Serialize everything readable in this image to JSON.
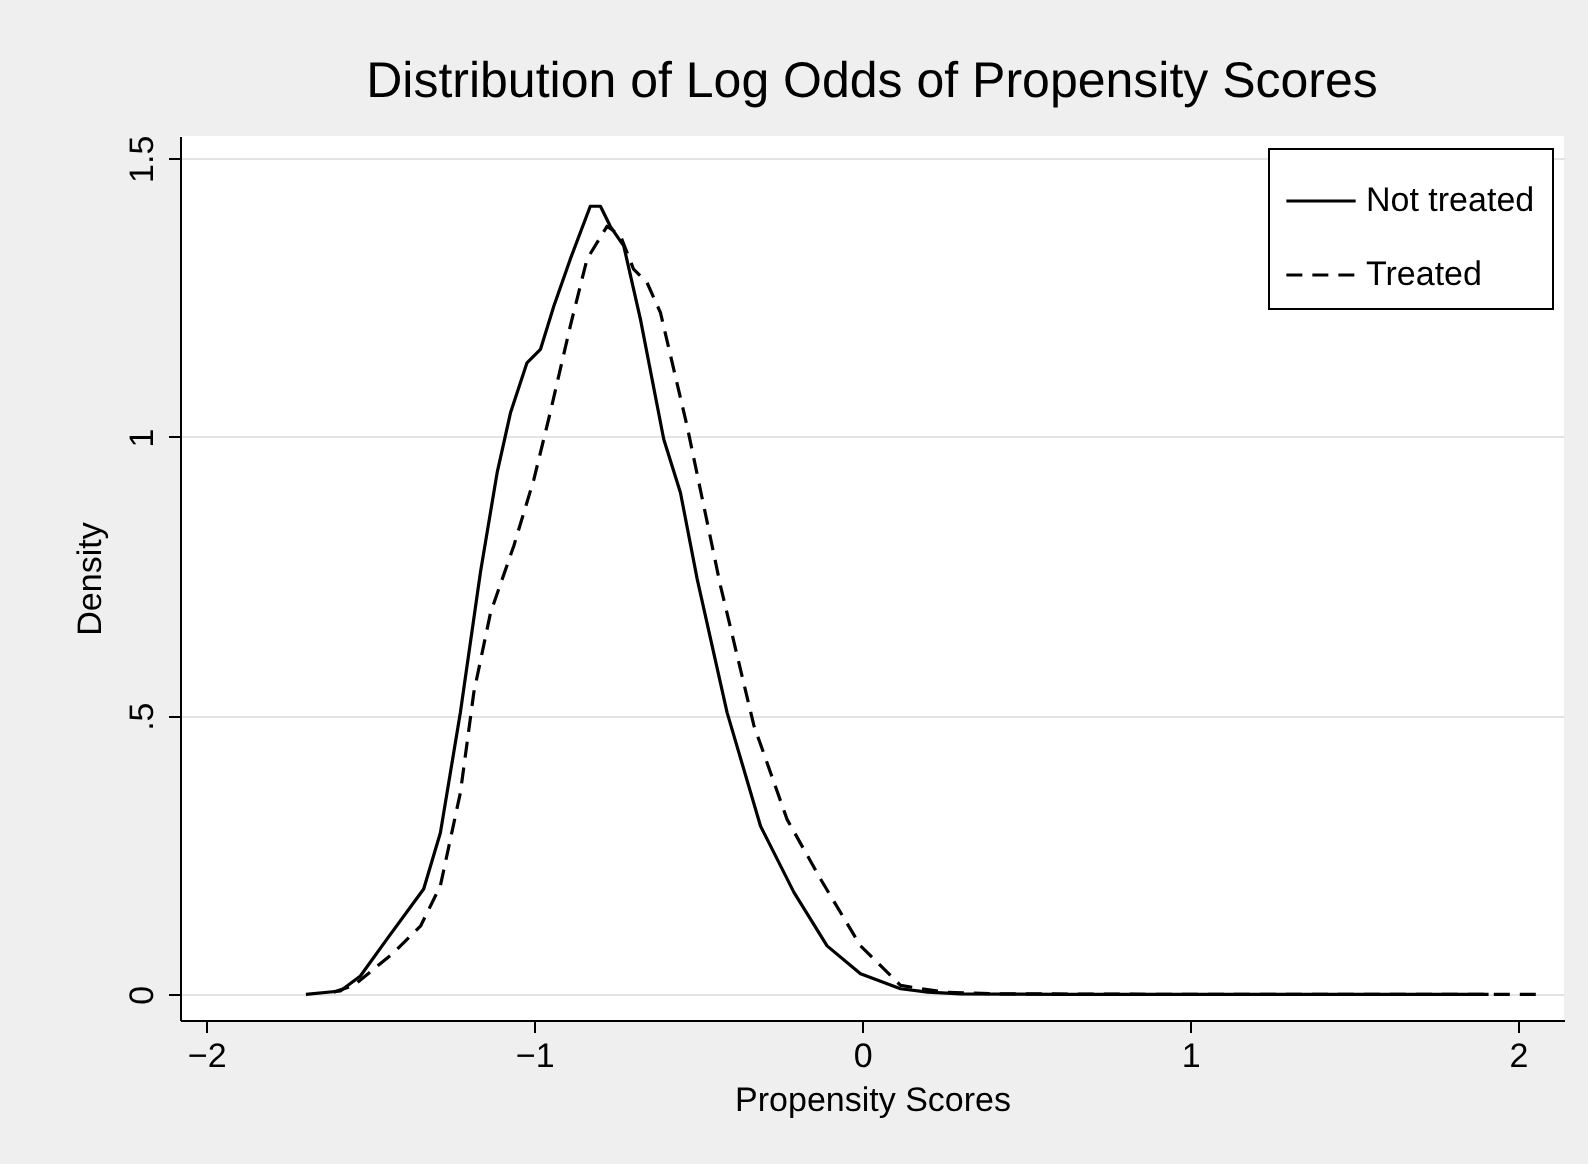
{
  "chart_data": {
    "type": "line",
    "title": "Distribution of Log Odds of Propensity Scores",
    "xlabel": "Propensity Scores",
    "ylabel": "Density",
    "xlim": [
      -2.08,
      2.14
    ],
    "ylim": [
      -0.046,
      1.54
    ],
    "xticks": [
      {
        "value": -2,
        "label": "−2"
      },
      {
        "value": -1,
        "label": "−1"
      },
      0,
      1,
      2
    ],
    "yticks": [
      0,
      {
        "value": 0.5,
        "label": ".5"
      },
      1,
      1.5
    ],
    "grid": "y",
    "legend": "top right",
    "marker": "none",
    "series": [
      {
        "name": "Not treated",
        "color": "#000000",
        "line_style": "solid",
        "x": [
          -1.696,
          -1.591,
          -1.53,
          -1.449,
          -1.337,
          -1.286,
          -1.225,
          -1.164,
          -1.113,
          -1.072,
          -1.022,
          -0.981,
          -0.94,
          -0.89,
          -0.829,
          -0.798,
          -0.768,
          -0.727,
          -0.676,
          -0.605,
          -0.554,
          -0.503,
          -0.412,
          -0.31,
          -0.208,
          -0.107,
          -0.005,
          0.117,
          0.2,
          0.3,
          0.6,
          1.91
        ],
        "values": [
          0,
          0.006,
          0.033,
          0.099,
          0.189,
          0.29,
          0.506,
          0.757,
          0.936,
          1.044,
          1.133,
          1.157,
          1.235,
          1.319,
          1.414,
          1.414,
          1.378,
          1.343,
          1.211,
          0.996,
          0.9,
          0.745,
          0.506,
          0.302,
          0.183,
          0.087,
          0.037,
          0.01,
          0.004,
          0.001,
          0,
          0
        ]
      },
      {
        "name": "Treated",
        "color": "#000000",
        "line_style": "dashed",
        "x": [
          -1.611,
          -1.55,
          -1.428,
          -1.346,
          -1.286,
          -1.225,
          -1.184,
          -1.133,
          -1.062,
          -1.001,
          -0.951,
          -0.89,
          -0.839,
          -0.778,
          -0.737,
          -0.697,
          -0.656,
          -0.615,
          -0.534,
          -0.432,
          -0.33,
          -0.229,
          -0.127,
          -0.005,
          0.117,
          0.25,
          0.4,
          1.0,
          2.07
        ],
        "values": [
          0.004,
          0.016,
          0.075,
          0.123,
          0.195,
          0.362,
          0.542,
          0.685,
          0.805,
          0.924,
          1.044,
          1.199,
          1.319,
          1.378,
          1.361,
          1.301,
          1.277,
          1.223,
          1.02,
          0.733,
          0.482,
          0.314,
          0.207,
          0.087,
          0.016,
          0.004,
          0.001,
          0,
          0
        ]
      }
    ]
  }
}
